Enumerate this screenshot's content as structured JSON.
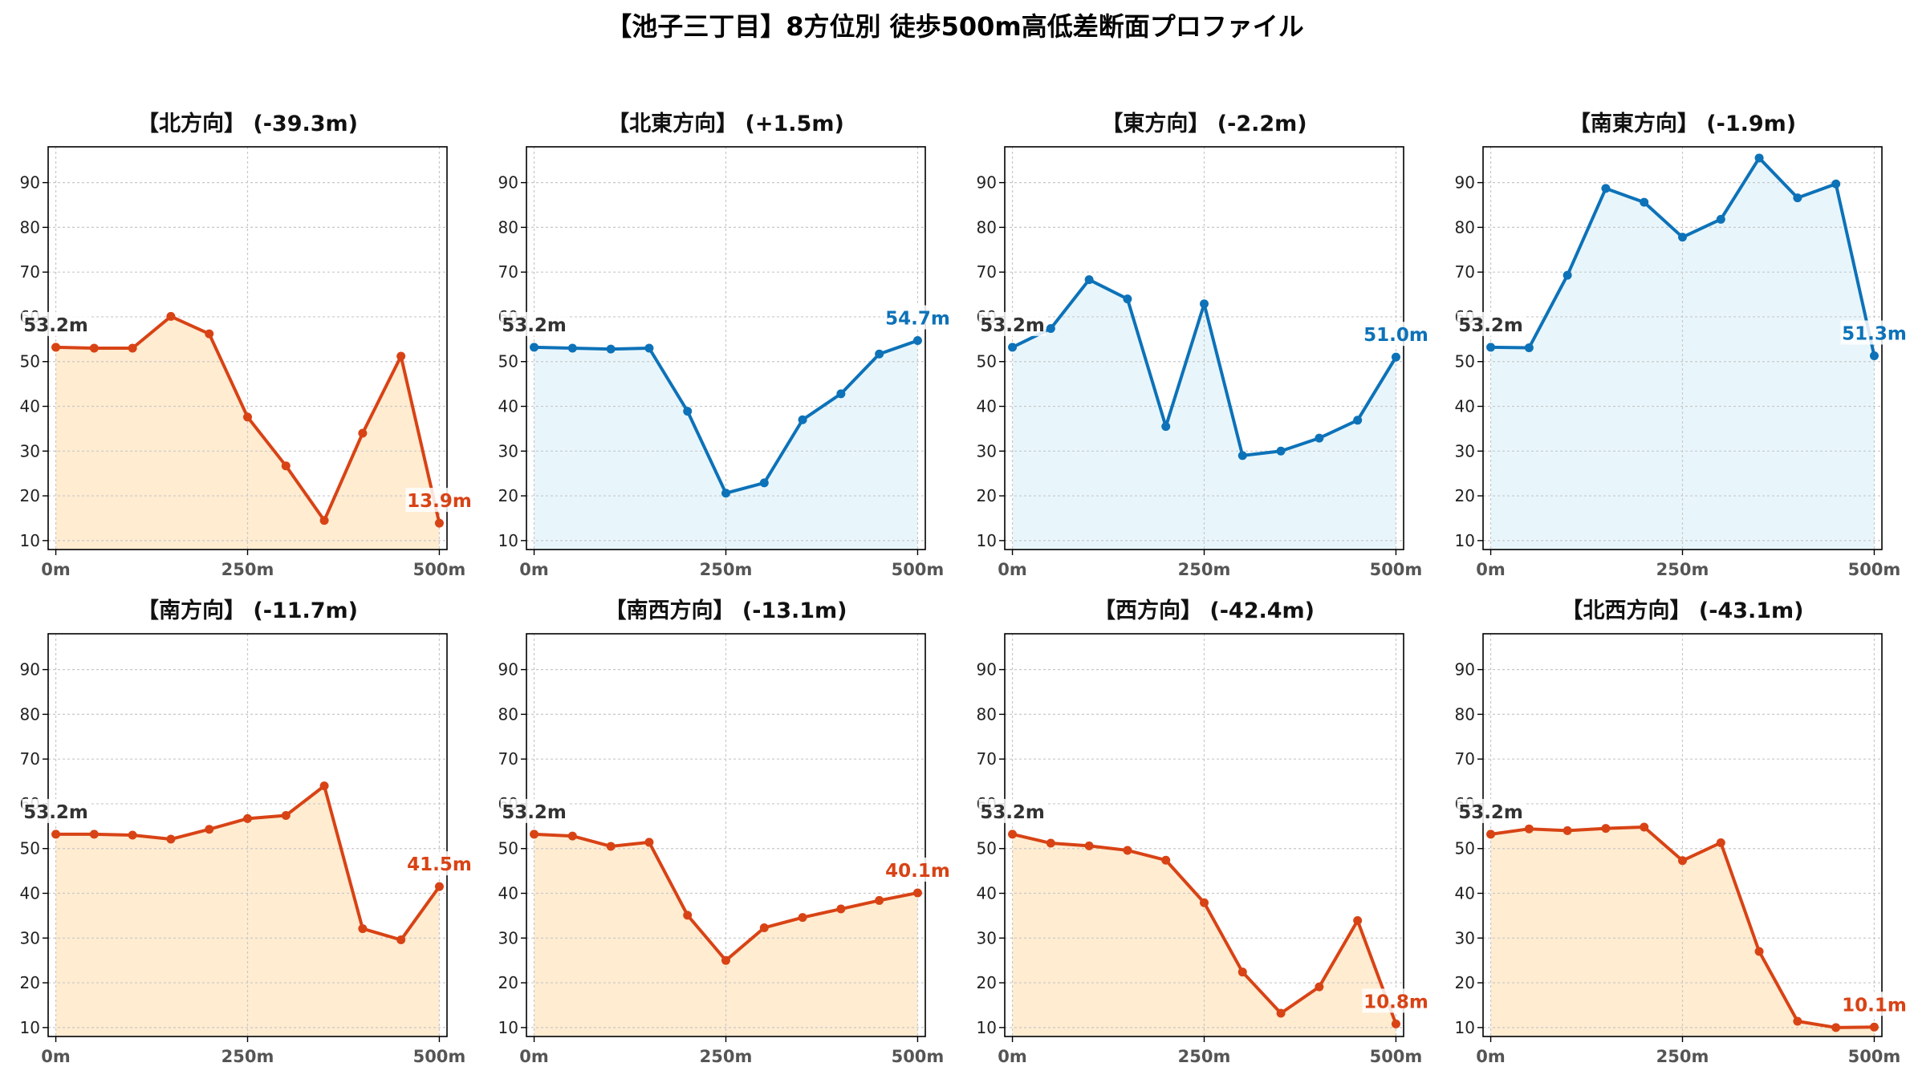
{
  "title": "【池子三丁目】8方位別 徒歩500m高低差断面プロファイル",
  "colors": {
    "down_line": "#d84315",
    "down_fill": "#ffecd1",
    "up_line": "#0d72b8",
    "up_fill": "#e8f6fc",
    "start_label": "#333333",
    "grid": "#c8c8c8"
  },
  "chart_data": [
    {
      "type": "area",
      "title": "【北方向】 (-39.3m)",
      "x": [
        0,
        50,
        100,
        150,
        200,
        250,
        300,
        350,
        400,
        450,
        500
      ],
      "y": [
        53.2,
        53.0,
        53.0,
        60.1,
        56.2,
        37.6,
        26.7,
        14.5,
        34.0,
        51.2,
        13.9
      ],
      "trend": "down",
      "start_label": "53.2m",
      "end_label": "13.9m",
      "xticks": [
        "0m",
        "250m",
        "500m"
      ],
      "yticks": [
        10,
        20,
        30,
        40,
        50,
        60,
        70,
        80,
        90
      ],
      "ylim": [
        8,
        98
      ],
      "xlim": [
        -10,
        510
      ],
      "grid": true
    },
    {
      "type": "area",
      "title": "【北東方向】 (+1.5m)",
      "x": [
        0,
        50,
        100,
        150,
        200,
        250,
        300,
        350,
        400,
        450,
        500
      ],
      "y": [
        53.2,
        53.0,
        52.8,
        53.0,
        38.9,
        20.6,
        22.9,
        37.0,
        42.8,
        51.7,
        54.7
      ],
      "trend": "up",
      "start_label": "53.2m",
      "end_label": "54.7m",
      "xticks": [
        "0m",
        "250m",
        "500m"
      ],
      "yticks": [
        10,
        20,
        30,
        40,
        50,
        60,
        70,
        80,
        90
      ],
      "ylim": [
        8,
        98
      ],
      "xlim": [
        -10,
        510
      ],
      "grid": true
    },
    {
      "type": "area",
      "title": "【東方向】 (-2.2m)",
      "x": [
        0,
        50,
        100,
        150,
        200,
        250,
        300,
        350,
        400,
        450,
        500
      ],
      "y": [
        53.2,
        57.4,
        68.3,
        64.0,
        35.5,
        62.9,
        29.0,
        30.0,
        32.9,
        36.9,
        51.0
      ],
      "trend": "up",
      "start_label": "53.2m",
      "end_label": "51.0m",
      "xticks": [
        "0m",
        "250m",
        "500m"
      ],
      "yticks": [
        10,
        20,
        30,
        40,
        50,
        60,
        70,
        80,
        90
      ],
      "ylim": [
        8,
        98
      ],
      "xlim": [
        -10,
        510
      ],
      "grid": true
    },
    {
      "type": "area",
      "title": "【南東方向】 (-1.9m)",
      "x": [
        0,
        50,
        100,
        150,
        200,
        250,
        300,
        350,
        400,
        450,
        500
      ],
      "y": [
        53.2,
        53.1,
        69.3,
        88.7,
        85.6,
        77.8,
        81.8,
        95.5,
        86.6,
        89.7,
        51.3
      ],
      "trend": "up",
      "start_label": "53.2m",
      "end_label": "51.3m",
      "xticks": [
        "0m",
        "250m",
        "500m"
      ],
      "yticks": [
        10,
        20,
        30,
        40,
        50,
        60,
        70,
        80,
        90
      ],
      "ylim": [
        8,
        98
      ],
      "xlim": [
        -10,
        510
      ],
      "grid": true
    },
    {
      "type": "area",
      "title": "【南方向】 (-11.7m)",
      "x": [
        0,
        50,
        100,
        150,
        200,
        250,
        300,
        350,
        400,
        450,
        500
      ],
      "y": [
        53.2,
        53.2,
        53.0,
        52.1,
        54.3,
        56.7,
        57.4,
        64.0,
        32.1,
        29.6,
        41.5
      ],
      "trend": "down",
      "start_label": "53.2m",
      "end_label": "41.5m",
      "xticks": [
        "0m",
        "250m",
        "500m"
      ],
      "yticks": [
        10,
        20,
        30,
        40,
        50,
        60,
        70,
        80,
        90
      ],
      "ylim": [
        8,
        98
      ],
      "xlim": [
        -10,
        510
      ],
      "grid": true
    },
    {
      "type": "area",
      "title": "【南西方向】 (-13.1m)",
      "x": [
        0,
        50,
        100,
        150,
        200,
        250,
        300,
        350,
        400,
        450,
        500
      ],
      "y": [
        53.2,
        52.8,
        50.5,
        51.4,
        35.1,
        25.0,
        32.3,
        34.6,
        36.5,
        38.4,
        40.1
      ],
      "trend": "down",
      "start_label": "53.2m",
      "end_label": "40.1m",
      "xticks": [
        "0m",
        "250m",
        "500m"
      ],
      "yticks": [
        10,
        20,
        30,
        40,
        50,
        60,
        70,
        80,
        90
      ],
      "ylim": [
        8,
        98
      ],
      "xlim": [
        -10,
        510
      ],
      "grid": true
    },
    {
      "type": "area",
      "title": "【西方向】 (-42.4m)",
      "x": [
        0,
        50,
        100,
        150,
        200,
        250,
        300,
        350,
        400,
        450,
        500
      ],
      "y": [
        53.2,
        51.2,
        50.6,
        49.6,
        47.4,
        37.9,
        22.4,
        13.2,
        19.1,
        33.9,
        10.8
      ],
      "trend": "down",
      "start_label": "53.2m",
      "end_label": "10.8m",
      "xticks": [
        "0m",
        "250m",
        "500m"
      ],
      "yticks": [
        10,
        20,
        30,
        40,
        50,
        60,
        70,
        80,
        90
      ],
      "ylim": [
        8,
        98
      ],
      "xlim": [
        -10,
        510
      ],
      "grid": true
    },
    {
      "type": "area",
      "title": "【北西方向】 (-43.1m)",
      "x": [
        0,
        50,
        100,
        150,
        200,
        250,
        300,
        350,
        400,
        450,
        500
      ],
      "y": [
        53.2,
        54.4,
        54.0,
        54.5,
        54.8,
        47.3,
        51.3,
        27.0,
        11.4,
        10.0,
        10.1
      ],
      "trend": "down",
      "start_label": "53.2m",
      "end_label": "10.1m",
      "xticks": [
        "0m",
        "250m",
        "500m"
      ],
      "yticks": [
        10,
        20,
        30,
        40,
        50,
        60,
        70,
        80,
        90
      ],
      "ylim": [
        8,
        98
      ],
      "xlim": [
        -10,
        510
      ],
      "grid": true
    }
  ]
}
